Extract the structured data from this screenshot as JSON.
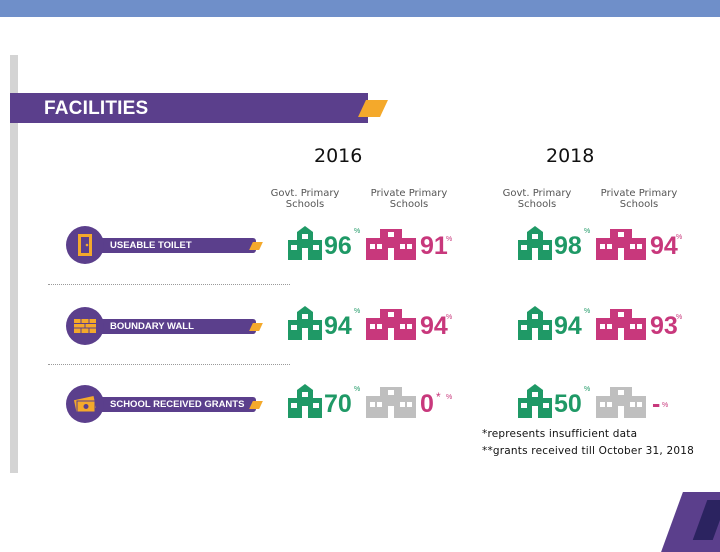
{
  "banner": {
    "title": "FACILITIES"
  },
  "years": [
    "2016",
    "2018"
  ],
  "column_headers": {
    "govt": "Govt. Primary\nSchools",
    "private": "Private Primary\nSchools"
  },
  "rows": [
    {
      "label": "USEABLE TOILET",
      "icon": "toilet-door-icon",
      "govt_2016": "96",
      "private_2016": "91",
      "govt_2018": "98",
      "private_2018": "94"
    },
    {
      "label": "BOUNDARY WALL",
      "icon": "brick-wall-icon",
      "govt_2016": "94",
      "private_2016": "94",
      "govt_2018": "94",
      "private_2018": "93"
    },
    {
      "label": "SCHOOL RECEIVED GRANTS",
      "icon": "money-grant-icon",
      "govt_2016": "70",
      "private_2016": "0",
      "private_2016_mark": "*",
      "govt_2018": "50",
      "private_2018": "-"
    }
  ],
  "percent_sign": "%",
  "notes": [
    "*represents insufficient data",
    "**grants received till October 31, 2018"
  ],
  "colors": {
    "govt": "#1f9966",
    "private": "#c8387c",
    "insufficient": "#bfbfbf",
    "accent": "#5b3f8c",
    "highlight": "#f4a92b"
  }
}
